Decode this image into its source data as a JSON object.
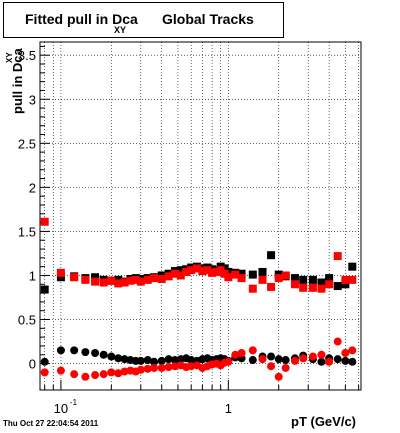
{
  "title": {
    "main": "Fitted pull in Dca",
    "sub": "XY",
    "tail": "Global Tracks"
  },
  "timestamp": "Thu Oct 27 22:04:54 2011",
  "chart_data": {
    "type": "scatter",
    "title": "Fitted pull in Dca XY Global Tracks",
    "xlabel": "pT (GeV/c)",
    "ylabel": "pull in Dca",
    "ylabel_sub": "XY",
    "xscale": "log",
    "xlim": [
      0.075,
      6.2
    ],
    "ylim": [
      -0.3,
      3.65
    ],
    "grid": true,
    "x_tick_labels": [
      {
        "value": 0.1,
        "base": "10",
        "exp": "-1"
      },
      {
        "value": 1,
        "base": "1",
        "exp": ""
      }
    ],
    "y_tick_labels": [
      "0",
      "0.5",
      "1",
      "1.5",
      "2",
      "2.5",
      "3",
      "3.5"
    ],
    "y_tick_values": [
      0,
      0.5,
      1,
      1.5,
      2,
      2.5,
      3,
      3.5
    ],
    "x": [
      0.08,
      0.1,
      0.12,
      0.14,
      0.16,
      0.18,
      0.2,
      0.22,
      0.24,
      0.26,
      0.28,
      0.3,
      0.33,
      0.36,
      0.4,
      0.44,
      0.48,
      0.52,
      0.56,
      0.6,
      0.65,
      0.7,
      0.75,
      0.8,
      0.85,
      0.9,
      0.95,
      1.0,
      1.1,
      1.2,
      1.4,
      1.6,
      1.8,
      2.0,
      2.2,
      2.5,
      2.8,
      3.2,
      3.6,
      4.0,
      4.5,
      5.0,
      5.5
    ],
    "series": [
      {
        "color": "#000000",
        "marker": "square",
        "values": [
          0.84,
          0.98,
          0.99,
          0.97,
          0.98,
          0.95,
          0.94,
          0.95,
          0.93,
          0.96,
          0.97,
          0.96,
          0.97,
          0.98,
          1.0,
          1.02,
          1.05,
          1.06,
          1.07,
          1.09,
          1.1,
          1.08,
          1.09,
          1.07,
          1.06,
          1.1,
          1.08,
          1.04,
          1.03,
          1.02,
          1.01,
          1.04,
          1.23,
          1.01,
          0.99,
          0.97,
          0.95,
          0.95,
          0.92,
          0.97,
          0.88,
          0.9,
          1.1
        ]
      },
      {
        "color": "#ff0000",
        "marker": "square",
        "values": [
          1.61,
          1.03,
          0.98,
          0.95,
          0.93,
          0.92,
          0.94,
          0.91,
          0.92,
          0.94,
          0.95,
          0.93,
          0.95,
          0.97,
          0.96,
          0.99,
          1.02,
          1.0,
          1.04,
          1.06,
          1.08,
          1.05,
          1.06,
          1.03,
          1.04,
          1.06,
          1.02,
          0.98,
          1.01,
          0.97,
          0.85,
          0.95,
          0.87,
          0.97,
          1.0,
          0.9,
          0.86,
          0.86,
          0.85,
          0.9,
          1.22,
          0.95,
          0.95
        ]
      },
      {
        "color": "#000000",
        "marker": "circle",
        "values": [
          0.02,
          0.15,
          0.15,
          0.13,
          0.12,
          0.1,
          0.08,
          0.06,
          0.05,
          0.04,
          0.03,
          0.03,
          0.04,
          0.02,
          0.03,
          0.05,
          0.04,
          0.05,
          0.06,
          0.04,
          0.03,
          0.05,
          0.06,
          0.04,
          0.05,
          0.06,
          0.05,
          0.03,
          0.07,
          0.06,
          0.04,
          0.08,
          0.08,
          0.05,
          0.04,
          0.06,
          0.09,
          0.05,
          0.02,
          0.06,
          0.05,
          0.03,
          0.02
        ]
      },
      {
        "color": "#ff0000",
        "marker": "circle",
        "values": [
          -0.1,
          -0.08,
          -0.12,
          -0.15,
          -0.13,
          -0.12,
          -0.1,
          -0.11,
          -0.09,
          -0.08,
          -0.09,
          -0.07,
          -0.06,
          -0.05,
          -0.05,
          -0.04,
          -0.03,
          -0.02,
          -0.04,
          -0.03,
          -0.02,
          -0.05,
          -0.03,
          -0.01,
          0.0,
          -0.02,
          0.01,
          0.02,
          0.1,
          0.12,
          0.15,
          0.05,
          -0.03,
          -0.15,
          -0.05,
          0.03,
          0.06,
          0.08,
          0.1,
          0.02,
          0.25,
          0.12,
          0.15
        ]
      }
    ]
  }
}
